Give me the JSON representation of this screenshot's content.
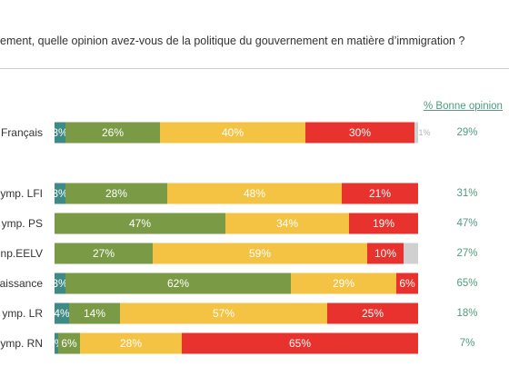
{
  "question": "ement, quelle opinion avez-vous de la politique du gouvernement en matière d’immigration ?",
  "good_opinion_header": "% Bonne opinion",
  "colors": {
    "tres_bonne": "#3f8a84",
    "plutot_bonne": "#7a9a45",
    "plutot_mauvaise": "#f4c344",
    "tres_mauvaise": "#e8322e",
    "nsp": "#d0d0d0",
    "good_text": "#4f9b7c"
  },
  "chart_data": {
    "type": "bar",
    "orientation": "horizontal",
    "stacked": true,
    "xlim": [
      0,
      100
    ],
    "categories": [
      "Français",
      "ymp. LFI",
      "ymp. PS",
      "np.EELV",
      "aissance",
      "ymp. LR",
      "ymp. RN"
    ],
    "series": [
      {
        "values": [
          3,
          3,
          0,
          0,
          3,
          4,
          1
        ]
      },
      {
        "values": [
          26,
          28,
          47,
          27,
          62,
          14,
          6
        ]
      },
      {
        "values": [
          40,
          48,
          34,
          59,
          29,
          57,
          28
        ]
      },
      {
        "values": [
          30,
          21,
          19,
          10,
          6,
          25,
          65
        ]
      },
      {
        "values": [
          1,
          0,
          0,
          4,
          0,
          0,
          0
        ]
      }
    ],
    "labels": [
      [
        "3%",
        "26%",
        "40%",
        "30%",
        "1%"
      ],
      [
        "3%",
        "28%",
        "48%",
        "21%",
        ""
      ],
      [
        "",
        "47%",
        "34%",
        "19%",
        ""
      ],
      [
        "",
        "27%",
        "59%",
        "10%",
        ""
      ],
      [
        "3%",
        "62%",
        "29%",
        "6%",
        ""
      ],
      [
        "4%",
        "14%",
        "57%",
        "25%",
        ""
      ],
      [
        "1%",
        "6%",
        "28%",
        "65%",
        ""
      ]
    ],
    "good_opinion": [
      "29%",
      "31%",
      "47%",
      "27%",
      "65%",
      "18%",
      "7%"
    ]
  }
}
